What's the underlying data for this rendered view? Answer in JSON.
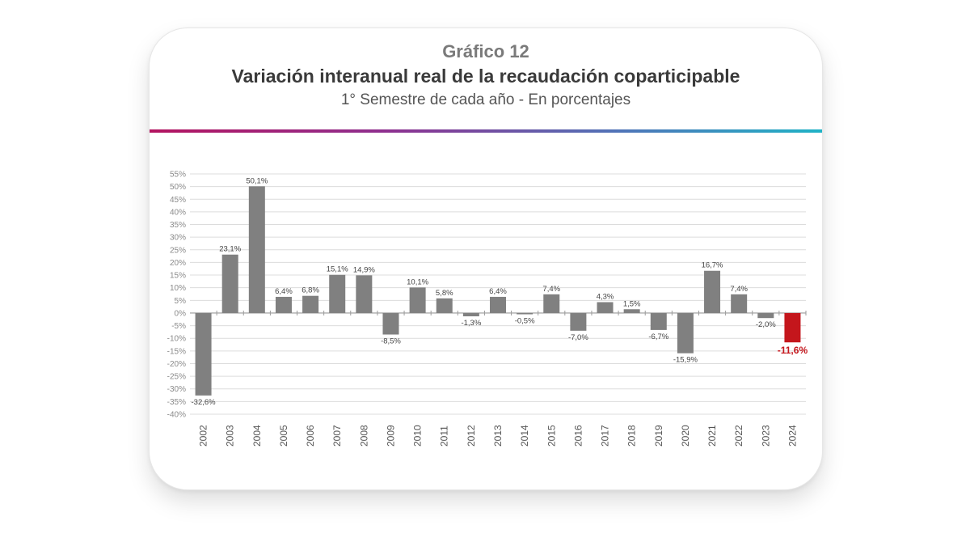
{
  "header": {
    "label": "Gráfico 12",
    "title": "Variación interanual real de la recaudación coparticipable",
    "subtitle": "1° Semestre de cada año - En porcentajes"
  },
  "colors": {
    "bar": "#808080",
    "highlight": "#c4161c",
    "grid": "#dcdcdc",
    "axis_text": "#8a8a8a"
  },
  "chart_data": {
    "type": "bar",
    "categories": [
      "2002",
      "2003",
      "2004",
      "2005",
      "2006",
      "2007",
      "2008",
      "2009",
      "2010",
      "2011",
      "2012",
      "2013",
      "2014",
      "2015",
      "2016",
      "2017",
      "2018",
      "2019",
      "2020",
      "2021",
      "2022",
      "2023",
      "2024"
    ],
    "values": [
      -32.6,
      23.1,
      50.1,
      6.4,
      6.8,
      15.1,
      14.9,
      -8.5,
      10.1,
      5.8,
      -1.3,
      6.4,
      -0.5,
      7.4,
      -7.0,
      4.3,
      1.5,
      -6.7,
      -15.9,
      16.7,
      7.4,
      -2.0,
      -11.6
    ],
    "data_labels": [
      "-32,6%",
      "23,1%",
      "50,1%",
      "6,4%",
      "6,8%",
      "15,1%",
      "14,9%",
      "-8,5%",
      "10,1%",
      "5,8%",
      "-1,3%",
      "6,4%",
      "-0,5%",
      "7,4%",
      "-7,0%",
      "4,3%",
      "1,5%",
      "-6,7%",
      "-15,9%",
      "16,7%",
      "7,4%",
      "-2,0%",
      "-11,6%"
    ],
    "highlight_category": "2024",
    "ylim": [
      -40,
      55
    ],
    "yticks": [
      55,
      50,
      45,
      40,
      35,
      30,
      25,
      20,
      15,
      10,
      5,
      0,
      -5,
      -10,
      -15,
      -20,
      -25,
      -30,
      -35,
      -40
    ],
    "ytick_labels": [
      "55%",
      "50%",
      "45%",
      "40%",
      "35%",
      "30%",
      "25%",
      "20%",
      "15%",
      "10%",
      "5%",
      "0%",
      "-5%",
      "-10%",
      "-15%",
      "-20%",
      "-25%",
      "-30%",
      "-35%",
      "-40%"
    ],
    "grid": true,
    "xlabel": "",
    "ylabel": ""
  }
}
